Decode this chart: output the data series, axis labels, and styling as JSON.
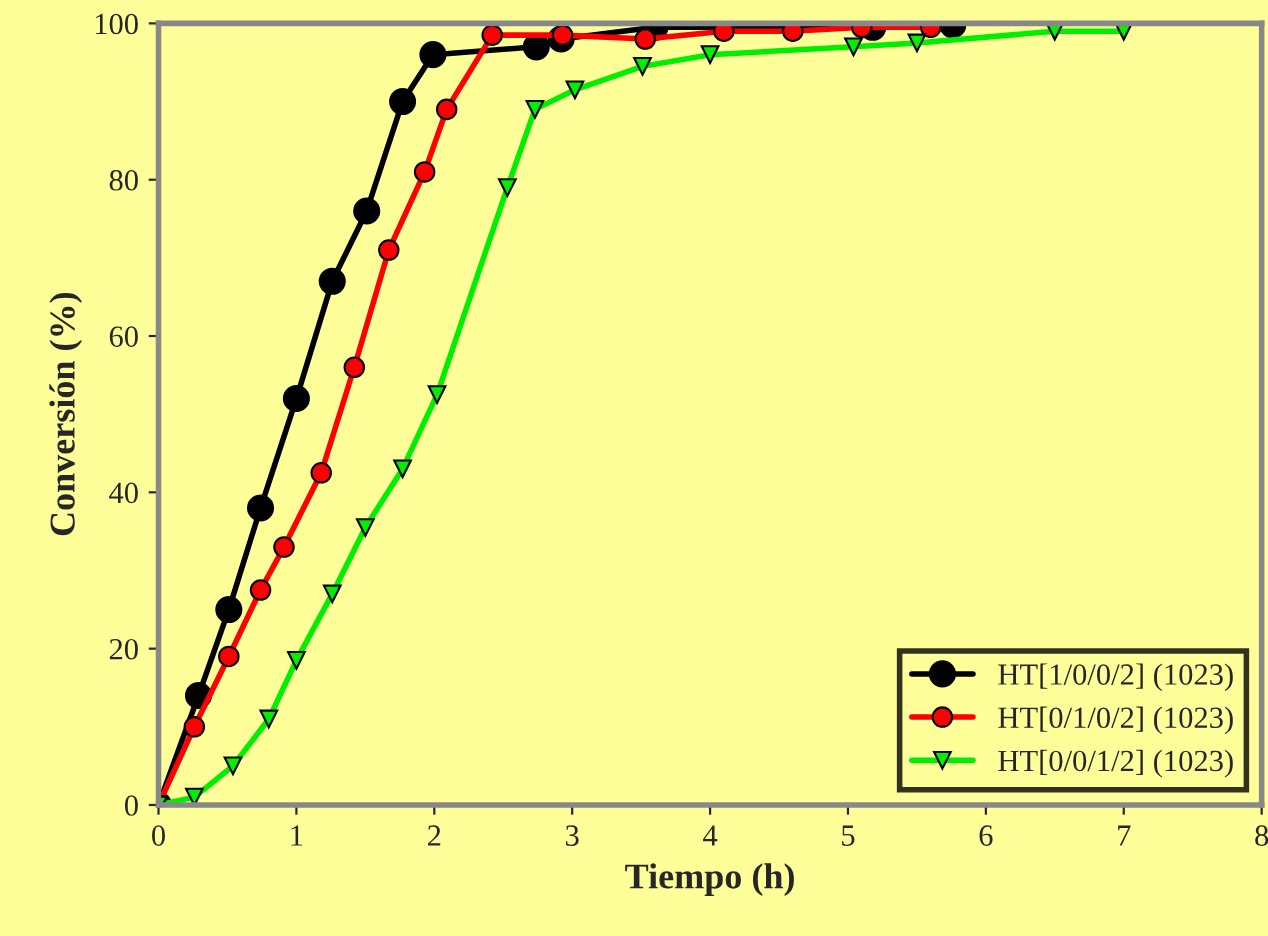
{
  "chart_data": {
    "type": "line",
    "xlabel": "Tiempo (h)",
    "ylabel": "Conversión (%)",
    "xlim": [
      0,
      8
    ],
    "ylim": [
      0,
      100
    ],
    "xticks": [
      0,
      1,
      2,
      3,
      4,
      5,
      6,
      7,
      8
    ],
    "yticks": [
      0,
      20,
      40,
      60,
      80,
      100
    ],
    "grid": false,
    "legend": "bottom right",
    "series": [
      {
        "name": "HT[1/0/0/2] (1023)",
        "color": "#000000",
        "marker": "circle",
        "x": [
          0,
          0.29,
          0.51,
          0.74,
          1.0,
          1.26,
          1.51,
          1.77,
          1.99,
          2.74,
          2.92,
          3.6,
          5.18,
          5.76
        ],
        "values": [
          0,
          14,
          25,
          38,
          52,
          67,
          76,
          90,
          96,
          97,
          98,
          99.5,
          99.5,
          99.8
        ]
      },
      {
        "name": "HT[0/1/0/2] (1023)",
        "color": "#ff0000",
        "marker": "circle",
        "x": [
          0,
          0.26,
          0.51,
          0.74,
          0.91,
          1.18,
          1.42,
          1.67,
          1.93,
          2.09,
          2.42,
          2.93,
          3.53,
          4.1,
          4.6,
          5.1,
          5.6
        ],
        "values": [
          0,
          10,
          19,
          27.5,
          33,
          42.5,
          56,
          71,
          81,
          89,
          98.5,
          98.5,
          98,
          99,
          99,
          99.5,
          99.5
        ]
      },
      {
        "name": "HT[0/0/1/2] (1023)",
        "color": "#00ee00",
        "marker": "triangle",
        "x": [
          0,
          0.26,
          0.54,
          0.8,
          1.0,
          1.26,
          1.5,
          1.77,
          2.02,
          2.53,
          2.73,
          3.02,
          3.51,
          4.0,
          5.04,
          5.5,
          6.5,
          7.0
        ],
        "values": [
          0,
          1,
          5,
          11,
          18.5,
          27,
          35.5,
          43,
          52.5,
          79,
          89,
          91.5,
          94.5,
          96,
          97,
          97.5,
          99,
          99
        ]
      }
    ]
  }
}
